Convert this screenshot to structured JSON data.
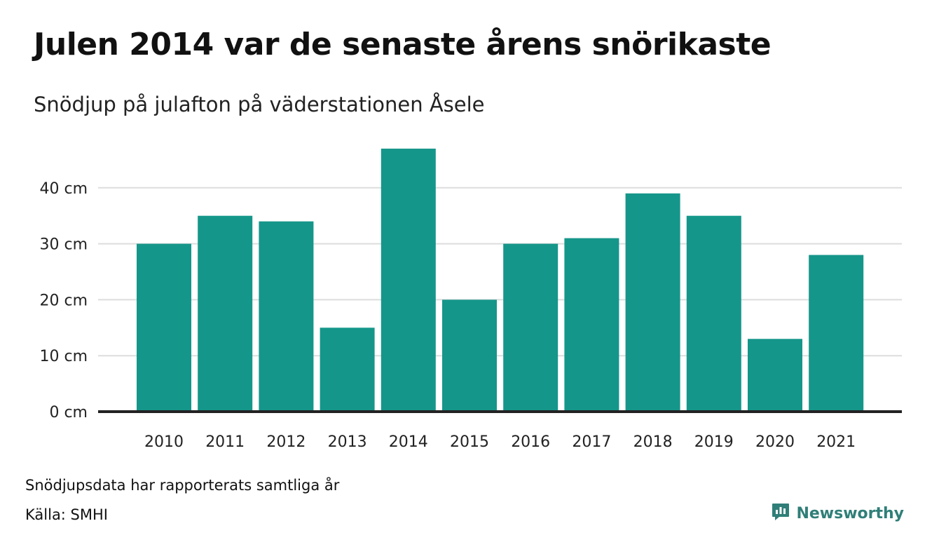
{
  "header": {
    "title": "Julen 2014 var de senaste årens snörikaste",
    "subtitle": "Snödjup på julafton på väderstationen Åsele"
  },
  "footer": {
    "note": "Snödjupsdata har rapporterats samtliga år",
    "source": "Källa: SMHI",
    "brand": "Newsworthy",
    "brand_icon": "newsworthy-logo-icon"
  },
  "colors": {
    "bar": "#15968a",
    "grid": "#dddddd",
    "baseline": "#222222",
    "brand": "#2f7f78"
  },
  "chart_data": {
    "type": "bar",
    "title": "Julen 2014 var de senaste årens snörikaste",
    "subtitle": "Snödjup på julafton på väderstationen Åsele",
    "categories": [
      "2010",
      "2011",
      "2012",
      "2013",
      "2014",
      "2015",
      "2016",
      "2017",
      "2018",
      "2019",
      "2020",
      "2021"
    ],
    "values": [
      30,
      35,
      34,
      15,
      47,
      20,
      30,
      31,
      39,
      35,
      13,
      28
    ],
    "unit": "cm",
    "yticks": [
      0,
      10,
      20,
      30,
      40
    ],
    "ytick_labels": [
      "0 cm",
      "10 cm",
      "20 cm",
      "30 cm",
      "40 cm"
    ],
    "ylim": [
      0,
      50
    ],
    "grid": true,
    "legend": "none"
  }
}
